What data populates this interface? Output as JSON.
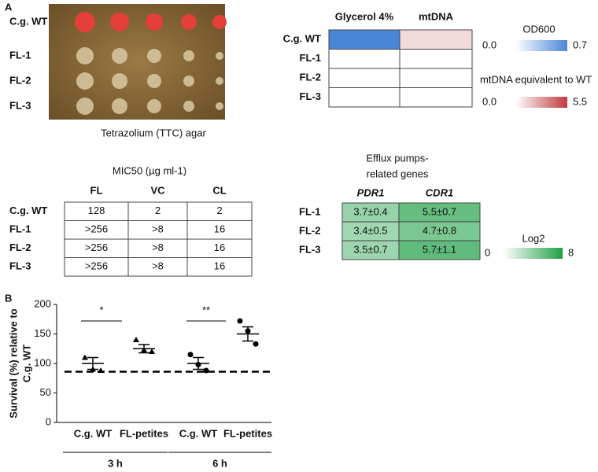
{
  "panel_a": {
    "label": "A",
    "plate": {
      "rows": [
        "C.g. WT",
        "FL-1",
        "FL-2",
        "FL-3"
      ],
      "caption": "Tetrazolium (TTC) agar"
    },
    "phenotype_heatmap": {
      "columns": [
        "Glycerol 4%",
        "mtDNA"
      ],
      "rows": [
        "C.g. WT",
        "FL-1",
        "FL-2",
        "FL-3"
      ],
      "values": [
        [
          0.7,
          1.0
        ],
        [
          0,
          0
        ],
        [
          0,
          0
        ],
        [
          0,
          0
        ]
      ],
      "colors": [
        "#4a86d8",
        "#c0393b"
      ],
      "legends": [
        {
          "title": "OD600",
          "min": {
            "value": 0,
            "label": "0.0"
          },
          "max": 0.7
        },
        {
          "title": "mtDNA equivalent to WT",
          "min": {
            "value": 0,
            "label": "0.0"
          },
          "max": 5.5
        }
      ]
    },
    "mic_table": {
      "title": "MIC50 (µg ml-1)",
      "columns": [
        "FL",
        "VC",
        "CL"
      ],
      "rows": [
        {
          "label": "C.g. WT",
          "cells": [
            "128",
            "2",
            "2"
          ]
        },
        {
          "label": "FL-1",
          "cells": [
            ">256",
            ">8",
            "16"
          ]
        },
        {
          "label": "FL-2",
          "cells": [
            ">256",
            ">8",
            "16"
          ]
        },
        {
          "label": "FL-3",
          "cells": [
            ">256",
            ">8",
            "16"
          ]
        }
      ]
    },
    "efflux_heatmap": {
      "title_lines": [
        "Efflux pumps-",
        "related genes"
      ],
      "columns": [
        "PDR1",
        "CDR1"
      ],
      "rows": [
        "FL-1",
        "FL-2",
        "FL-3"
      ],
      "values": [
        [
          3.7,
          5.5
        ],
        [
          3.4,
          4.7
        ],
        [
          3.5,
          5.7
        ]
      ],
      "value_labels": [
        [
          "3.7±0.4",
          "5.5±0.7"
        ],
        [
          "3.4±0.5",
          "4.7±0.8"
        ],
        [
          "3.5±0.7",
          "5.7±1.1"
        ]
      ],
      "color": "#1fa046",
      "legend": {
        "title": "Log2",
        "min": 0,
        "max": 8
      }
    }
  },
  "chart_data": {
    "type": "dot",
    "panel_label": "B",
    "ylabel_lines": [
      "Survival (%) relative to",
      "C.g. WT"
    ],
    "categories": [
      "C.g. WT",
      "FL-petites",
      "C.g. WT",
      "FL-petites"
    ],
    "groups": [
      "3 h",
      "6 h"
    ],
    "markers": [
      "triangle",
      "triangle",
      "circle",
      "circle"
    ],
    "points": [
      [
        110,
        90,
        88
      ],
      [
        140,
        123,
        120
      ],
      [
        115,
        98,
        88
      ],
      [
        172,
        155,
        133
      ]
    ],
    "means": [
      100,
      125,
      100,
      150
    ],
    "sem": [
      10,
      7,
      10,
      12
    ],
    "reference_line": 86,
    "significance": [
      "*",
      "**"
    ],
    "ylim": [
      0,
      200
    ],
    "yticks": [
      0,
      50,
      100,
      150,
      200
    ],
    "color": "#000000"
  }
}
